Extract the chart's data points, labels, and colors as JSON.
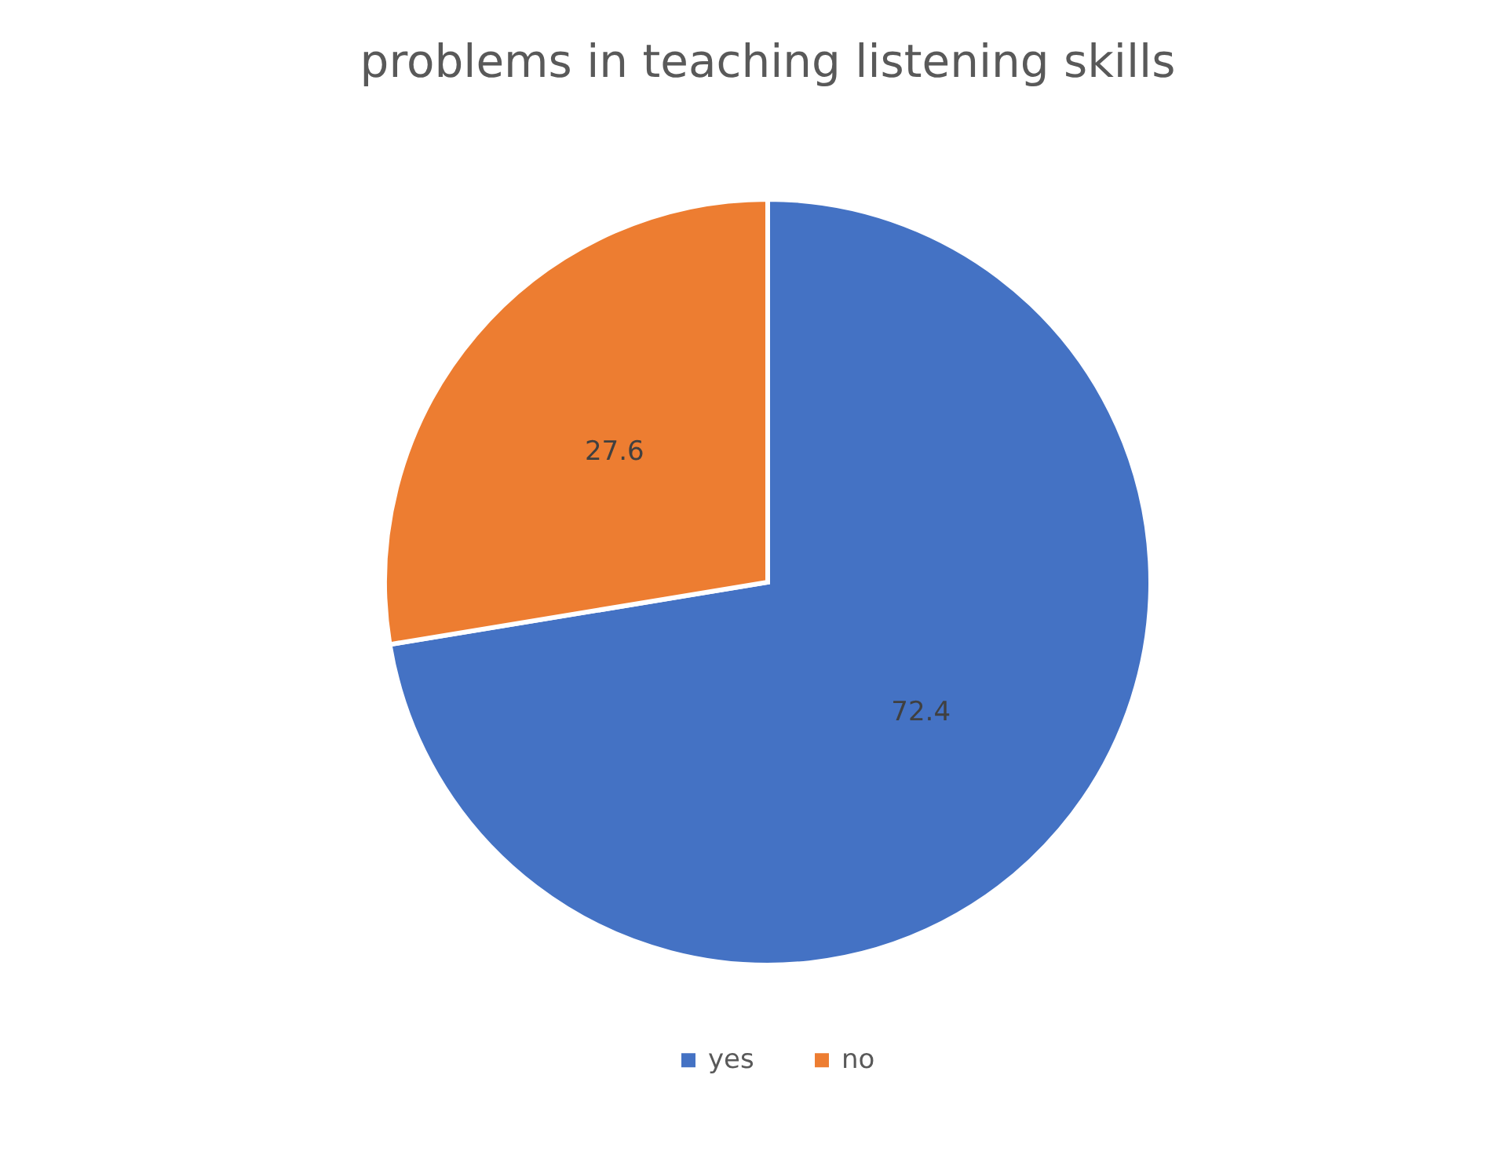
{
  "chart_data": {
    "type": "pie",
    "title": "problems in teaching listening skills",
    "categories": [
      "yes",
      "no"
    ],
    "values": [
      72.4,
      27.6
    ],
    "colors": [
      "#4472c4",
      "#ed7d31"
    ],
    "data_labels": true,
    "legend": "bottom"
  }
}
